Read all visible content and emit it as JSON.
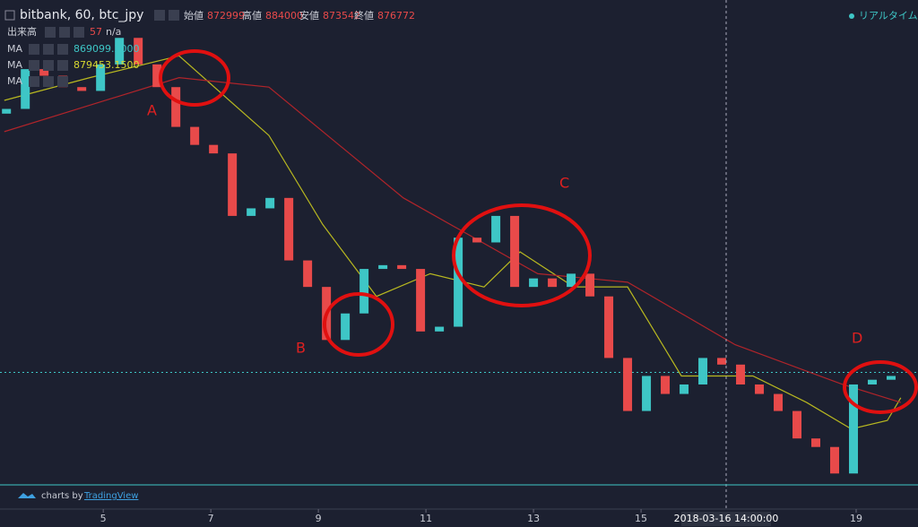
{
  "header": {
    "symbol": "bitbank, 60, btc_jpy",
    "ohlc": [
      {
        "label": "始値",
        "value": 872999
      },
      {
        "label": "高値",
        "value": 884000
      },
      {
        "label": "安値",
        "value": 873542
      },
      {
        "label": "終値",
        "value": 876772
      }
    ],
    "volume": {
      "label": "出来高",
      "value": 57,
      "extra": "n/a"
    },
    "indicators": [
      {
        "label": "MA",
        "value": "869099.2000"
      },
      {
        "label": "MA",
        "value": "879453.1500"
      },
      {
        "label": "MA"
      }
    ],
    "realtime": "リアルタイム",
    "branding": {
      "prefix": "charts by",
      "name": "TradingView"
    },
    "crosshair_label": "2018-03-16 14:00:00"
  },
  "chart_data": {
    "type": "candlestick",
    "x": [
      3.2,
      3.55,
      3.9,
      4.25,
      4.6,
      4.95,
      5.3,
      5.65,
      6,
      6.35,
      6.7,
      7.05,
      7.4,
      7.75,
      8.1,
      8.45,
      8.8,
      9.15,
      9.5,
      9.85,
      10.2,
      10.55,
      10.9,
      11.25,
      11.6,
      11.95,
      12.3,
      12.65,
      13,
      13.35,
      13.7,
      14.05,
      14.4,
      14.75,
      15.1,
      15.45,
      15.8,
      16.15,
      16.5,
      16.85,
      17.2,
      17.55,
      17.9,
      18.25,
      18.6,
      18.95,
      19.3,
      19.65
    ],
    "open": [
      1150000,
      1155000,
      1197000,
      1190000,
      1178000,
      1174000,
      1202000,
      1230000,
      1202000,
      1178000,
      1136000,
      1117000,
      1108000,
      1042000,
      1050000,
      1061000,
      995000,
      967000,
      911000,
      939000,
      986000,
      990000,
      986000,
      920000,
      925000,
      1019000,
      1014000,
      1042000,
      967000,
      976000,
      967000,
      981000,
      957000,
      892000,
      836000,
      873000,
      854000,
      864000,
      892000,
      885000,
      864000,
      854000,
      836000,
      807000,
      798000,
      770000,
      864000,
      869000
    ],
    "close": [
      1155000,
      1197000,
      1190000,
      1178000,
      1174000,
      1202000,
      1230000,
      1202000,
      1178000,
      1136000,
      1117000,
      1108000,
      1042000,
      1050000,
      1061000,
      995000,
      967000,
      911000,
      939000,
      986000,
      990000,
      986000,
      920000,
      925000,
      1019000,
      1014000,
      1042000,
      967000,
      976000,
      967000,
      981000,
      957000,
      892000,
      836000,
      873000,
      854000,
      864000,
      892000,
      885000,
      864000,
      854000,
      836000,
      807000,
      798000,
      770000,
      864000,
      869000,
      873000
    ],
    "up_color": "#3ec6c6",
    "down_color": "#e84a4a",
    "lines": [
      {
        "color": "#b8b820",
        "x": [
          3.16,
          4.75,
          6.41,
          8.08,
          9.08,
          10.08,
          11.08,
          12.08,
          12.75,
          13.75,
          14.75,
          15.75,
          17.08,
          18.08,
          18.91,
          19.58,
          19.83
        ],
        "values": [
          1164000,
          1188000,
          1211000,
          1127000,
          1033000,
          957000,
          981000,
          967000,
          1004000,
          967000,
          967000,
          873000,
          873000,
          845000,
          817000,
          826000,
          850000
        ]
      },
      {
        "color": "#b0242a",
        "x": [
          3.16,
          6.41,
          8.08,
          10.58,
          13.08,
          14.75,
          16.75,
          18.75,
          19.83
        ],
        "values": [
          1131000,
          1188000,
          1178000,
          1061000,
          981000,
          972000,
          906000,
          864000,
          845000
        ]
      }
    ],
    "xlim": [
      3.08,
      20.15
    ],
    "ylim": [
      740000,
      1270000
    ],
    "xticks": [
      5,
      7,
      9,
      11,
      13,
      15,
      19
    ],
    "annotations": [
      "A",
      "B",
      "C",
      "D"
    ]
  }
}
